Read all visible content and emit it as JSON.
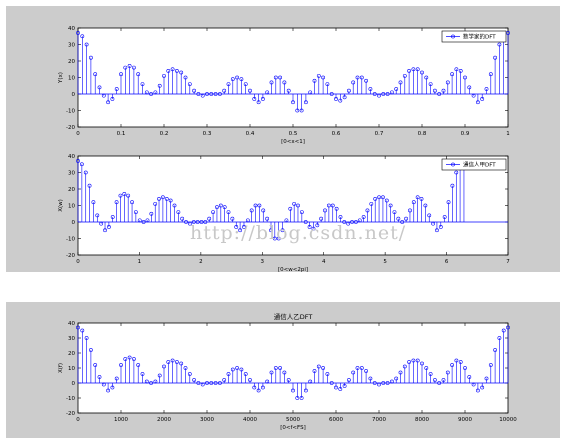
{
  "watermark": "http://blog.csdn.net/",
  "colors": {
    "figure_bg": "#cccccc",
    "axes_bg": "#ffffff",
    "stem": "#0000ff"
  },
  "chart_data": [
    {
      "type": "stem",
      "title": "",
      "xlabel": "[0<x<1]",
      "ylabel": "Y(x)",
      "xlim": [
        0,
        1
      ],
      "ylim": [
        -20,
        40
      ],
      "xticks": [
        0,
        0.1,
        0.2,
        0.3,
        0.4,
        0.5,
        0.6,
        0.7,
        0.8,
        0.9,
        1
      ],
      "xtick_labels": [
        "0",
        "0.1",
        "0.2",
        "0.3",
        "0.4",
        "0.5",
        "0.6",
        "0.7",
        "0.8",
        "0.9",
        "1"
      ],
      "yticks": [
        -20,
        -10,
        0,
        10,
        20,
        30,
        40
      ],
      "ytick_labels": [
        "-20",
        "-10",
        "0",
        "10",
        "20",
        "30",
        "40"
      ],
      "legend": {
        "label": "数学家的DFT",
        "location": "top-right"
      },
      "series": [
        {
          "name": "数学家的DFT",
          "x": [
            0,
            0.01,
            0.02,
            0.03,
            0.04,
            0.05,
            0.06,
            0.07,
            0.08,
            0.09,
            0.1,
            0.11,
            0.12,
            0.13,
            0.14,
            0.15,
            0.16,
            0.17,
            0.18,
            0.19,
            0.2,
            0.21,
            0.22,
            0.23,
            0.24,
            0.25,
            0.26,
            0.27,
            0.28,
            0.29,
            0.3,
            0.31,
            0.32,
            0.33,
            0.34,
            0.35,
            0.36,
            0.37,
            0.38,
            0.39,
            0.4,
            0.41,
            0.42,
            0.43,
            0.44,
            0.45,
            0.46,
            0.47,
            0.48,
            0.49,
            0.5,
            0.51,
            0.52,
            0.53,
            0.54,
            0.55,
            0.56,
            0.57,
            0.58,
            0.59,
            0.6,
            0.61,
            0.62,
            0.63,
            0.64,
            0.65,
            0.66,
            0.67,
            0.68,
            0.69,
            0.7,
            0.71,
            0.72,
            0.73,
            0.74,
            0.75,
            0.76,
            0.77,
            0.78,
            0.79,
            0.8,
            0.81,
            0.82,
            0.83,
            0.84,
            0.85,
            0.86,
            0.87,
            0.88,
            0.89,
            0.9,
            0.91,
            0.92,
            0.93,
            0.94,
            0.95,
            0.96,
            0.97,
            0.98,
            0.99,
            1
          ],
          "y": [
            37,
            35,
            30,
            22,
            12,
            4,
            -1,
            -5,
            -3,
            3,
            12,
            16,
            17,
            16,
            12,
            6,
            1,
            0,
            1,
            5,
            11,
            14,
            15,
            14,
            13,
            10,
            6,
            2,
            0,
            -1,
            0,
            0,
            0,
            0,
            2,
            6,
            9,
            10,
            9,
            6,
            2,
            -3,
            -5,
            -3,
            1,
            7,
            10,
            10,
            7,
            2,
            -5,
            -10,
            -10,
            -5,
            1,
            8,
            11,
            10,
            6,
            0,
            -3,
            -4,
            -2,
            2,
            7,
            10,
            10,
            8,
            3,
            0,
            -1,
            0,
            0,
            1,
            3,
            7,
            11,
            14,
            15,
            15,
            13,
            10,
            6,
            2,
            0,
            2,
            7,
            12,
            15,
            14,
            10,
            4,
            -1,
            -5,
            -3,
            3,
            12,
            22,
            30,
            35,
            37
          ]
        }
      ]
    },
    {
      "type": "stem",
      "title": "",
      "xlabel": "[0<w<2pi]",
      "ylabel": "X(w)",
      "xlim": [
        0,
        7
      ],
      "ylim": [
        -20,
        40
      ],
      "xticks": [
        0,
        1,
        2,
        3,
        4,
        5,
        6,
        7
      ],
      "xtick_labels": [
        "0",
        "1",
        "2",
        "3",
        "4",
        "5",
        "6",
        "7"
      ],
      "yticks": [
        -20,
        -10,
        0,
        10,
        20,
        30,
        40
      ],
      "ytick_labels": [
        "-20",
        "-10",
        "0",
        "10",
        "20",
        "30",
        "40"
      ],
      "legend": {
        "label": "通信人甲DFT",
        "location": "top-right"
      },
      "series": [
        {
          "name": "通信人甲DFT",
          "x": [
            0,
            0.063,
            0.126,
            0.188,
            0.251,
            0.314,
            0.377,
            0.44,
            0.503,
            0.565,
            0.628,
            0.691,
            0.754,
            0.817,
            0.88,
            0.942,
            1.005,
            1.068,
            1.131,
            1.194,
            1.257,
            1.319,
            1.382,
            1.445,
            1.508,
            1.571,
            1.634,
            1.696,
            1.759,
            1.822,
            1.885,
            1.948,
            2.011,
            2.073,
            2.136,
            2.199,
            2.262,
            2.325,
            2.388,
            2.45,
            2.513,
            2.576,
            2.639,
            2.702,
            2.765,
            2.827,
            2.89,
            2.953,
            3.016,
            3.079,
            3.142,
            3.204,
            3.267,
            3.33,
            3.393,
            3.456,
            3.519,
            3.581,
            3.644,
            3.707,
            3.77,
            3.833,
            3.896,
            3.958,
            4.021,
            4.084,
            4.147,
            4.21,
            4.273,
            4.335,
            4.398,
            4.461,
            4.524,
            4.587,
            4.65,
            4.712,
            4.775,
            4.838,
            4.901,
            4.964,
            5.027,
            5.089,
            5.152,
            5.215,
            5.278,
            5.341,
            5.404,
            5.466,
            5.529,
            5.592,
            5.655,
            5.718,
            5.781,
            5.843,
            5.906,
            5.969,
            6.032,
            6.095,
            6.158,
            6.22,
            6.283
          ],
          "y": [
            37,
            35,
            30,
            22,
            12,
            4,
            -1,
            -5,
            -3,
            3,
            12,
            16,
            17,
            16,
            12,
            6,
            1,
            0,
            1,
            5,
            11,
            14,
            15,
            14,
            13,
            10,
            6,
            2,
            0,
            -1,
            0,
            0,
            0,
            0,
            2,
            6,
            9,
            10,
            9,
            6,
            2,
            -3,
            -5,
            -3,
            1,
            7,
            10,
            10,
            7,
            2,
            -5,
            -10,
            -10,
            -5,
            1,
            8,
            11,
            10,
            6,
            0,
            -3,
            -4,
            -2,
            2,
            7,
            10,
            10,
            8,
            3,
            0,
            -1,
            0,
            0,
            1,
            3,
            7,
            11,
            14,
            15,
            15,
            13,
            10,
            6,
            2,
            0,
            2,
            7,
            12,
            15,
            14,
            10,
            4,
            -1,
            -5,
            -3,
            3,
            12,
            22,
            30,
            35,
            37
          ]
        }
      ]
    },
    {
      "type": "stem",
      "title": "通信人乙DFT",
      "xlabel": "[0<f<FS]",
      "ylabel": "X(f)",
      "xlim": [
        0,
        10000
      ],
      "ylim": [
        -20,
        40
      ],
      "xticks": [
        0,
        1000,
        2000,
        3000,
        4000,
        5000,
        6000,
        7000,
        8000,
        9000,
        10000
      ],
      "xtick_labels": [
        "0",
        "1000",
        "2000",
        "3000",
        "4000",
        "5000",
        "6000",
        "7000",
        "8000",
        "9000",
        "10000"
      ],
      "yticks": [
        -20,
        -10,
        0,
        10,
        20,
        30,
        40
      ],
      "ytick_labels": [
        "-20",
        "-10",
        "0",
        "10",
        "20",
        "30",
        "40"
      ],
      "legend": null,
      "series": [
        {
          "name": "",
          "x": [
            0,
            100,
            200,
            300,
            400,
            500,
            600,
            700,
            800,
            900,
            1000,
            1100,
            1200,
            1300,
            1400,
            1500,
            1600,
            1700,
            1800,
            1900,
            2000,
            2100,
            2200,
            2300,
            2400,
            2500,
            2600,
            2700,
            2800,
            2900,
            3000,
            3100,
            3200,
            3300,
            3400,
            3500,
            3600,
            3700,
            3800,
            3900,
            4000,
            4100,
            4200,
            4300,
            4400,
            4500,
            4600,
            4700,
            4800,
            4900,
            5000,
            5100,
            5200,
            5300,
            5400,
            5500,
            5600,
            5700,
            5800,
            5900,
            6000,
            6100,
            6200,
            6300,
            6400,
            6500,
            6600,
            6700,
            6800,
            6900,
            7000,
            7100,
            7200,
            7300,
            7400,
            7500,
            7600,
            7700,
            7800,
            7900,
            8000,
            8100,
            8200,
            8300,
            8400,
            8500,
            8600,
            8700,
            8800,
            8900,
            9000,
            9100,
            9200,
            9300,
            9400,
            9500,
            9600,
            9700,
            9800,
            9900,
            10000
          ],
          "y": [
            37,
            35,
            30,
            22,
            12,
            4,
            -1,
            -5,
            -3,
            3,
            12,
            16,
            17,
            16,
            12,
            6,
            1,
            0,
            1,
            5,
            11,
            14,
            15,
            14,
            13,
            10,
            6,
            2,
            0,
            -1,
            0,
            0,
            0,
            0,
            2,
            6,
            9,
            10,
            9,
            6,
            2,
            -3,
            -5,
            -3,
            1,
            7,
            10,
            10,
            7,
            2,
            -5,
            -10,
            -10,
            -5,
            1,
            8,
            11,
            10,
            6,
            0,
            -3,
            -4,
            -2,
            2,
            7,
            10,
            10,
            8,
            3,
            0,
            -1,
            0,
            0,
            1,
            3,
            7,
            11,
            14,
            15,
            15,
            13,
            10,
            6,
            2,
            0,
            2,
            7,
            12,
            15,
            14,
            10,
            4,
            -1,
            -5,
            -3,
            3,
            12,
            22,
            30,
            35,
            37
          ]
        }
      ]
    }
  ]
}
